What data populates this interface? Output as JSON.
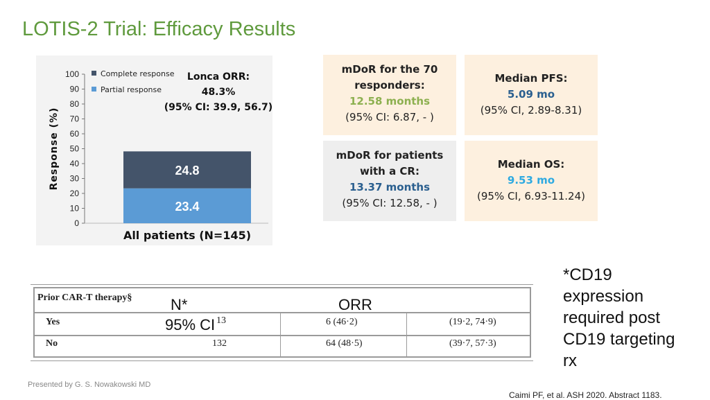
{
  "slide": {
    "title": "LOTIS-2 Trial: Efficacy Results",
    "presenter": "Presented by G. S. Nowakowski MD",
    "citation": "Caimi PF, et al. ASH 2020. Abstract 1183.",
    "note_lines": [
      "*CD19",
      "expression",
      "required post",
      "CD19 targeting",
      "rx"
    ]
  },
  "chart_data": {
    "type": "bar",
    "stacked": true,
    "categories": [
      "All patients (N=145)"
    ],
    "series": [
      {
        "name": "Partial response",
        "values": [
          23.4
        ],
        "color": "#5b9bd5"
      },
      {
        "name": "Complete response",
        "values": [
          24.8
        ],
        "color": "#44546a"
      }
    ],
    "ylabel": "Response (%)",
    "ylim": [
      0,
      100
    ],
    "yticks": [
      0,
      10,
      20,
      30,
      40,
      50,
      60,
      70,
      80,
      90,
      100
    ],
    "legend_position": "top-left",
    "legend": [
      "Complete response",
      "Partial response"
    ],
    "annotation": [
      "Lonca ORR:",
      "48.3%",
      "(95% CI: 39.9, 56.7)"
    ],
    "grid": false
  },
  "boxes": {
    "mdor70": {
      "line1": "mDoR for the 70",
      "line2": "responders:",
      "value": "12.58 months",
      "ci": "(95% CI: 6.87, - )",
      "value_color": "#8db050"
    },
    "pfs": {
      "line1": "Median PFS:",
      "value": "5.09 mo",
      "ci": "(95% CI, 2.89-8.31)",
      "value_color": "#2a5f8f"
    },
    "mdorcr": {
      "line1": "mDoR for patients",
      "line2": "with a CR:",
      "value": "13.37 months",
      "ci": "(95% CI: 12.58, - )",
      "value_color": "#2a5f8f"
    },
    "os": {
      "line1": "Median OS:",
      "value": "9.53 mo",
      "ci": "(95% CI, 6.93-11.24)",
      "value_color": "#2eaae1"
    }
  },
  "table": {
    "header": "Prior CAR-T therapy§",
    "rows": [
      {
        "label": "Yes",
        "n": "13",
        "orr": "6 (46·2)",
        "ci": "(19·2, 74·9)"
      },
      {
        "label": "No",
        "n": "132",
        "orr": "64 (48·5)",
        "ci": "(39·7, 57·3)"
      }
    ],
    "overlay_n": "N*",
    "overlay_ci": "95% CI",
    "overlay_orr": "ORR"
  }
}
